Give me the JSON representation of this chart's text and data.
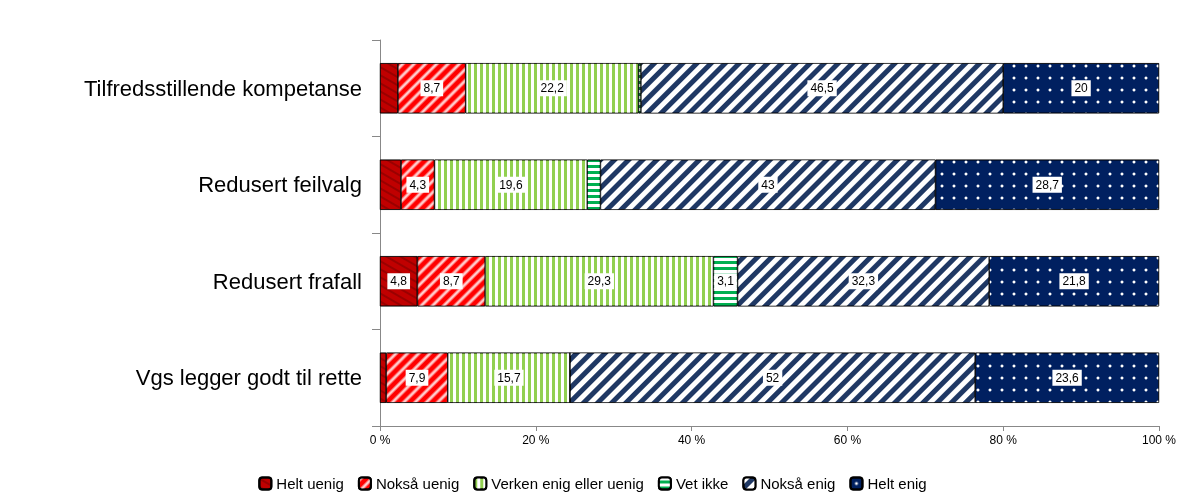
{
  "chart_data": {
    "type": "bar",
    "orientation": "horizontal",
    "stacked": true,
    "categories": [
      "Tilfredsstillende kompetanse",
      "Redusert feilvalg",
      "Redusert frafall",
      "Vgs legger godt til rette"
    ],
    "series": [
      {
        "name": "Helt uenig",
        "color": "#c00000",
        "values": [
          2.3,
          2.7,
          4.8,
          0.8
        ],
        "value_labels": [
          null,
          null,
          "4,8",
          null
        ]
      },
      {
        "name": "Nokså uenig",
        "color": "#ff0000",
        "values": [
          8.7,
          4.3,
          8.7,
          7.9
        ],
        "value_labels": [
          "8,7",
          "4,3",
          "8,7",
          "7,9"
        ]
      },
      {
        "name": "Verken enig eller uenig",
        "color": "#92d050",
        "values": [
          22.2,
          19.6,
          29.3,
          15.7
        ],
        "value_labels": [
          "22,2",
          "19,6",
          "29,3",
          "15,7"
        ]
      },
      {
        "name": "Vet ikke",
        "color": "#00b050",
        "values": [
          0.3,
          1.7,
          3.1,
          0
        ],
        "value_labels": [
          null,
          null,
          "3,1",
          null
        ]
      },
      {
        "name": "Nokså enig",
        "color": "#1f3864",
        "values": [
          46.5,
          43,
          32.3,
          52
        ],
        "value_labels": [
          "46,5",
          "43",
          "32,3",
          "52"
        ]
      },
      {
        "name": "Helt enig",
        "color": "#002060",
        "values": [
          20,
          28.7,
          21.8,
          23.6
        ],
        "value_labels": [
          "20",
          "28,7",
          "21,8",
          "23,6"
        ]
      }
    ],
    "xlim": [
      0,
      100
    ],
    "xticks": [
      {
        "value": 0,
        "label": "0 %"
      },
      {
        "value": 20,
        "label": "20 %"
      },
      {
        "value": 40,
        "label": "40 %"
      },
      {
        "value": 60,
        "label": "60 %"
      },
      {
        "value": 80,
        "label": "80 %"
      },
      {
        "value": 100,
        "label": "100 %"
      }
    ],
    "grid": false,
    "legend": "bottom"
  }
}
